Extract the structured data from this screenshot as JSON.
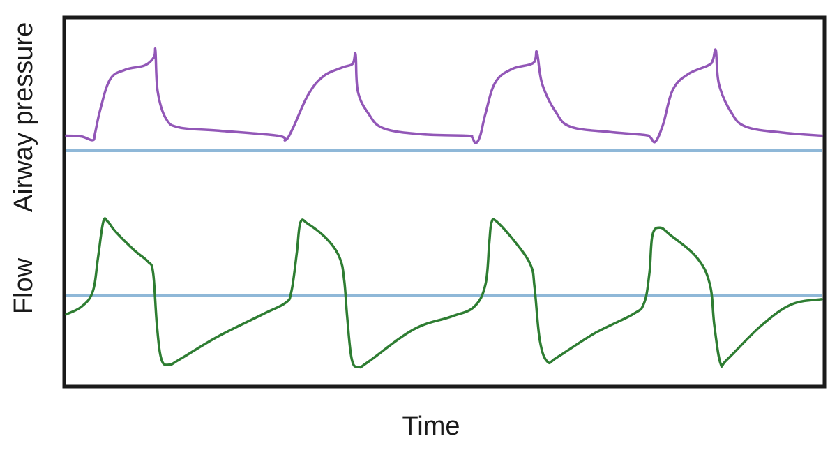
{
  "chart_data": {
    "type": "line",
    "title": "",
    "xlabel": "Time",
    "ylabels": [
      "Airway pressure",
      "Flow"
    ],
    "grid": false,
    "legend": "none",
    "x_range": [
      0,
      1
    ],
    "colors": {
      "pressure": "#9257b7",
      "flow": "#2e7d32",
      "baseline": "#8fb8d8",
      "frame": "#1a1a1a"
    },
    "series": [
      {
        "name": "Airway pressure",
        "points": [
          [
            0.0,
            0.9
          ],
          [
            0.02,
            0.89
          ],
          [
            0.035,
            0.84
          ],
          [
            0.038,
            0.93
          ],
          [
            0.045,
            1.25
          ],
          [
            0.058,
            1.66
          ],
          [
            0.078,
            1.79
          ],
          [
            0.104,
            1.85
          ],
          [
            0.116,
            1.96
          ],
          [
            0.118,
            2.05
          ],
          [
            0.121,
            1.5
          ],
          [
            0.132,
            1.13
          ],
          [
            0.15,
            1.01
          ],
          [
            0.2,
            0.97
          ],
          [
            0.28,
            0.9
          ],
          [
            0.29,
            0.84
          ],
          [
            0.3,
            1.0
          ],
          [
            0.32,
            1.45
          ],
          [
            0.34,
            1.7
          ],
          [
            0.365,
            1.82
          ],
          [
            0.379,
            1.87
          ],
          [
            0.383,
            2.0
          ],
          [
            0.386,
            1.5
          ],
          [
            0.4,
            1.2
          ],
          [
            0.42,
            1.0
          ],
          [
            0.47,
            0.92
          ],
          [
            0.53,
            0.9
          ],
          [
            0.537,
            0.88
          ],
          [
            0.542,
            0.8
          ],
          [
            0.548,
            0.9
          ],
          [
            0.555,
            1.2
          ],
          [
            0.568,
            1.62
          ],
          [
            0.59,
            1.8
          ],
          [
            0.618,
            1.88
          ],
          [
            0.623,
            2.03
          ],
          [
            0.63,
            1.6
          ],
          [
            0.648,
            1.22
          ],
          [
            0.668,
            1.02
          ],
          [
            0.72,
            0.95
          ],
          [
            0.765,
            0.91
          ],
          [
            0.773,
            0.88
          ],
          [
            0.78,
            0.82
          ],
          [
            0.79,
            1.05
          ],
          [
            0.803,
            1.52
          ],
          [
            0.823,
            1.73
          ],
          [
            0.85,
            1.85
          ],
          [
            0.856,
            1.92
          ],
          [
            0.86,
            2.05
          ],
          [
            0.864,
            1.6
          ],
          [
            0.88,
            1.22
          ],
          [
            0.9,
            1.02
          ],
          [
            0.95,
            0.94
          ],
          [
            1.0,
            0.9
          ]
        ]
      },
      {
        "name": "Flow",
        "points": [
          [
            0.0,
            -0.25
          ],
          [
            0.02,
            -0.15
          ],
          [
            0.035,
            0.05
          ],
          [
            0.042,
            0.5
          ],
          [
            0.049,
            0.98
          ],
          [
            0.055,
            0.98
          ],
          [
            0.065,
            0.85
          ],
          [
            0.09,
            0.6
          ],
          [
            0.108,
            0.45
          ],
          [
            0.115,
            0.3
          ],
          [
            0.12,
            -0.4
          ],
          [
            0.126,
            -0.85
          ],
          [
            0.136,
            -0.92
          ],
          [
            0.15,
            -0.85
          ],
          [
            0.2,
            -0.55
          ],
          [
            0.26,
            -0.25
          ],
          [
            0.29,
            -0.1
          ],
          [
            0.298,
            0.05
          ],
          [
            0.305,
            0.55
          ],
          [
            0.31,
            0.97
          ],
          [
            0.32,
            0.95
          ],
          [
            0.345,
            0.75
          ],
          [
            0.362,
            0.5
          ],
          [
            0.368,
            0.2
          ],
          [
            0.372,
            -0.3
          ],
          [
            0.378,
            -0.85
          ],
          [
            0.387,
            -0.95
          ],
          [
            0.4,
            -0.88
          ],
          [
            0.46,
            -0.45
          ],
          [
            0.51,
            -0.28
          ],
          [
            0.54,
            -0.15
          ],
          [
            0.555,
            0.15
          ],
          [
            0.56,
            0.7
          ],
          [
            0.563,
            0.97
          ],
          [
            0.57,
            0.98
          ],
          [
            0.595,
            0.7
          ],
          [
            0.615,
            0.4
          ],
          [
            0.62,
            0.1
          ],
          [
            0.627,
            -0.6
          ],
          [
            0.637,
            -0.88
          ],
          [
            0.65,
            -0.82
          ],
          [
            0.7,
            -0.5
          ],
          [
            0.75,
            -0.25
          ],
          [
            0.765,
            -0.1
          ],
          [
            0.772,
            0.3
          ],
          [
            0.776,
            0.8
          ],
          [
            0.786,
            0.9
          ],
          [
            0.8,
            0.8
          ],
          [
            0.835,
            0.5
          ],
          [
            0.852,
            0.15
          ],
          [
            0.858,
            -0.4
          ],
          [
            0.866,
            -0.9
          ],
          [
            0.875,
            -0.85
          ],
          [
            0.92,
            -0.4
          ],
          [
            0.96,
            -0.12
          ],
          [
            1.0,
            -0.05
          ]
        ]
      }
    ],
    "baselines": [
      {
        "series": "Airway pressure",
        "y": 0.7
      },
      {
        "series": "Flow",
        "y": 0.0
      }
    ],
    "panels": [
      {
        "series": "Airway pressure",
        "y_range": [
          0.0,
          2.45
        ]
      },
      {
        "series": "Flow",
        "y_range": [
          -1.2,
          1.7
        ]
      }
    ]
  }
}
